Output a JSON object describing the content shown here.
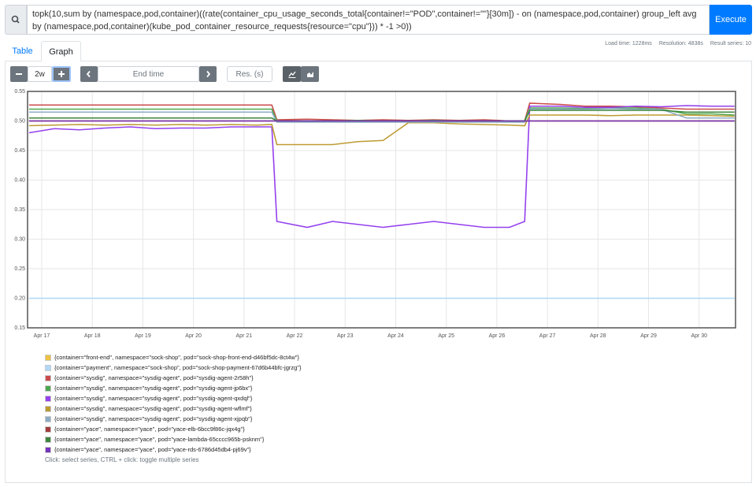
{
  "query": "topk(10,sum by (namespace,pod,container)((rate(container_cpu_usage_seconds_total{container!=\"POD\",container!=\"\"}[30m]) - on (namespace,pod,container) group_left avg by (namespace,pod,container)(kube_pod_container_resource_requests{resource=\"cpu\"})) * -1 >0))",
  "execute": "Execute",
  "stats": [
    "Load time: 1228ms",
    "Resolution: 4838s",
    "Result series: 10"
  ],
  "tabs": [
    "Table",
    "Graph"
  ],
  "controls": {
    "range": "2w",
    "end_time": "End time",
    "resolution": "Res. (s)"
  },
  "chart_data": {
    "type": "line",
    "x": [
      16.75,
      17.25,
      17.75,
      18.25,
      18.75,
      19.25,
      19.75,
      20.25,
      20.75,
      21.25,
      21.55,
      21.65,
      22.25,
      22.75,
      23.25,
      23.75,
      24.25,
      24.75,
      25.25,
      25.75,
      26.25,
      26.55,
      26.65,
      27.25,
      27.75,
      28.25,
      28.75,
      29.25,
      29.75,
      30.25,
      30.7
    ],
    "xlim": [
      16.72,
      30.72
    ],
    "xticks": [
      {
        "value": 17,
        "label": "Apr 17"
      },
      {
        "value": 18,
        "label": "Apr 18"
      },
      {
        "value": 19,
        "label": "Apr 19"
      },
      {
        "value": 20,
        "label": "Apr 20"
      },
      {
        "value": 21,
        "label": "Apr 21"
      },
      {
        "value": 22,
        "label": "Apr 22"
      },
      {
        "value": 23,
        "label": "Apr 23"
      },
      {
        "value": 24,
        "label": "Apr 24"
      },
      {
        "value": 25,
        "label": "Apr 25"
      },
      {
        "value": 26,
        "label": "Apr 26"
      },
      {
        "value": 27,
        "label": "Apr 27"
      },
      {
        "value": 28,
        "label": "Apr 28"
      },
      {
        "value": 29,
        "label": "Apr 29"
      },
      {
        "value": 30,
        "label": "Apr 30"
      }
    ],
    "ylim": [
      0.15,
      0.55
    ],
    "yticks": [
      0.15,
      {
        "value": 0.2,
        "label": "0.20"
      },
      0.25,
      {
        "value": 0.3,
        "label": "0.30"
      },
      0.35,
      {
        "value": 0.4,
        "label": "0.40"
      },
      0.45,
      {
        "value": 0.5,
        "label": "0.50"
      },
      0.55
    ],
    "grid": true,
    "series": [
      {
        "name": "{container=\"front-end\", namespace=\"sock-shop\", pod=\"sock-shop-front-end-d46bf5dc-8ct4w\"}",
        "color": "#edc240",
        "values": [
          0.5,
          0.5,
          0.5,
          0.5,
          0.5,
          0.5,
          0.5,
          0.5,
          0.5,
          0.5,
          0.5,
          0.5,
          0.5,
          0.5,
          0.5,
          0.5,
          0.5,
          0.5,
          0.5,
          0.5,
          0.5,
          0.5,
          0.5,
          0.5,
          0.5,
          0.5,
          0.5,
          0.5,
          0.5,
          0.5,
          0.5
        ]
      },
      {
        "name": "{container=\"payment\", namespace=\"sock-shop\", pod=\"sock-shop-payment-67d6b44bfc-jgrzg\"}",
        "color": "#afd8f8",
        "values": [
          0.2,
          0.2,
          0.2,
          0.2,
          0.2,
          0.2,
          0.2,
          0.2,
          0.2,
          0.2,
          0.2,
          0.2,
          0.2,
          0.2,
          0.2,
          0.2,
          0.2,
          0.2,
          0.2,
          0.2,
          0.2,
          0.2,
          0.2,
          0.2,
          0.2,
          0.2,
          0.2,
          0.2,
          0.2,
          0.2,
          0.2
        ]
      },
      {
        "name": "{container=\"sysdig\", namespace=\"sysdig-agent\", pod=\"sysdig-agent-2r58h\"}",
        "color": "#cb4b4b",
        "values": [
          0.527,
          0.527,
          0.527,
          0.527,
          0.527,
          0.527,
          0.527,
          0.527,
          0.527,
          0.527,
          0.527,
          0.502,
          0.503,
          0.502,
          0.501,
          0.502,
          0.501,
          0.502,
          0.501,
          0.502,
          0.5,
          0.5,
          0.53,
          0.528,
          0.525,
          0.525,
          0.524,
          0.522,
          0.52,
          0.52,
          0.52
        ]
      },
      {
        "name": "{container=\"sysdig\", namespace=\"sysdig-agent\", pod=\"sysdig-agent-jp6bx\"}",
        "color": "#4da74d",
        "values": [
          0.52,
          0.52,
          0.52,
          0.52,
          0.52,
          0.52,
          0.52,
          0.52,
          0.52,
          0.52,
          0.52,
          0.5,
          0.5,
          0.5,
          0.501,
          0.5,
          0.5,
          0.501,
          0.5,
          0.5,
          0.5,
          0.5,
          0.522,
          0.522,
          0.521,
          0.522,
          0.522,
          0.52,
          0.512,
          0.512,
          0.51
        ]
      },
      {
        "name": "{container=\"sysdig\", namespace=\"sysdig-agent\", pod=\"sysdig-agent-qxdql\"}",
        "color": "#9440ed",
        "values": [
          0.48,
          0.487,
          0.485,
          0.488,
          0.49,
          0.487,
          0.488,
          0.488,
          0.49,
          0.49,
          0.49,
          0.33,
          0.32,
          0.33,
          0.325,
          0.32,
          0.325,
          0.33,
          0.325,
          0.32,
          0.32,
          0.33,
          0.525,
          0.525,
          0.523,
          0.523,
          0.525,
          0.524,
          0.526,
          0.525,
          0.525
        ]
      },
      {
        "name": "{container=\"sysdig\", namespace=\"sysdig-agent\", pod=\"sysdig-agent-wflmf\"}",
        "color": "#bd9b33",
        "values": [
          0.492,
          0.493,
          0.494,
          0.493,
          0.494,
          0.493,
          0.494,
          0.493,
          0.494,
          0.493,
          0.494,
          0.46,
          0.46,
          0.46,
          0.465,
          0.467,
          0.497,
          0.497,
          0.495,
          0.494,
          0.493,
          0.492,
          0.51,
          0.51,
          0.51,
          0.509,
          0.51,
          0.51,
          0.51,
          0.509,
          0.508
        ]
      },
      {
        "name": "{container=\"sysdig\", namespace=\"sysdig-agent\", pod=\"sysdig-agent-xjpqb\"}",
        "color": "#8cacc6",
        "values": [
          0.515,
          0.515,
          0.515,
          0.515,
          0.515,
          0.515,
          0.515,
          0.515,
          0.515,
          0.515,
          0.515,
          0.498,
          0.498,
          0.498,
          0.498,
          0.498,
          0.498,
          0.498,
          0.498,
          0.498,
          0.498,
          0.498,
          0.52,
          0.52,
          0.52,
          0.521,
          0.52,
          0.52,
          0.505,
          0.505,
          0.505
        ]
      },
      {
        "name": "{container=\"yace\", namespace=\"yace\", pod=\"yace-elb-6bcc9f86c-jqx4g\"}",
        "color": "#a23c3c",
        "values": [
          0.5,
          0.5,
          0.5,
          0.5,
          0.5,
          0.5,
          0.5,
          0.5,
          0.5,
          0.5,
          0.5,
          0.5,
          0.5,
          0.5,
          0.5,
          0.5,
          0.5,
          0.5,
          0.5,
          0.5,
          0.5,
          0.5,
          0.5,
          0.5,
          0.5,
          0.5,
          0.5,
          0.5,
          0.5,
          0.5,
          0.5
        ]
      },
      {
        "name": "{container=\"yace\", namespace=\"yace\", pod=\"yace-lambda-65cccc965b-psknm\"}",
        "color": "#3d853d",
        "values": [
          0.505,
          0.505,
          0.505,
          0.505,
          0.505,
          0.505,
          0.505,
          0.505,
          0.505,
          0.505,
          0.505,
          0.5,
          0.5,
          0.5,
          0.5,
          0.5,
          0.5,
          0.5,
          0.5,
          0.5,
          0.5,
          0.5,
          0.518,
          0.518,
          0.518,
          0.518,
          0.518,
          0.518,
          0.515,
          0.515,
          0.515
        ]
      },
      {
        "name": "{container=\"yace\", namespace=\"yace\", pod=\"yace-rds-6786d45db4-pj69v\"}",
        "color": "#7633bd",
        "values": [
          0.5,
          0.5,
          0.5,
          0.5,
          0.5,
          0.5,
          0.5,
          0.5,
          0.5,
          0.5,
          0.5,
          0.5,
          0.5,
          0.5,
          0.5,
          0.5,
          0.5,
          0.5,
          0.5,
          0.5,
          0.5,
          0.5,
          0.5,
          0.5,
          0.5,
          0.5,
          0.5,
          0.5,
          0.5,
          0.5,
          0.5
        ]
      }
    ]
  },
  "hint": "Click: select series, CTRL + click: toggle multiple series"
}
